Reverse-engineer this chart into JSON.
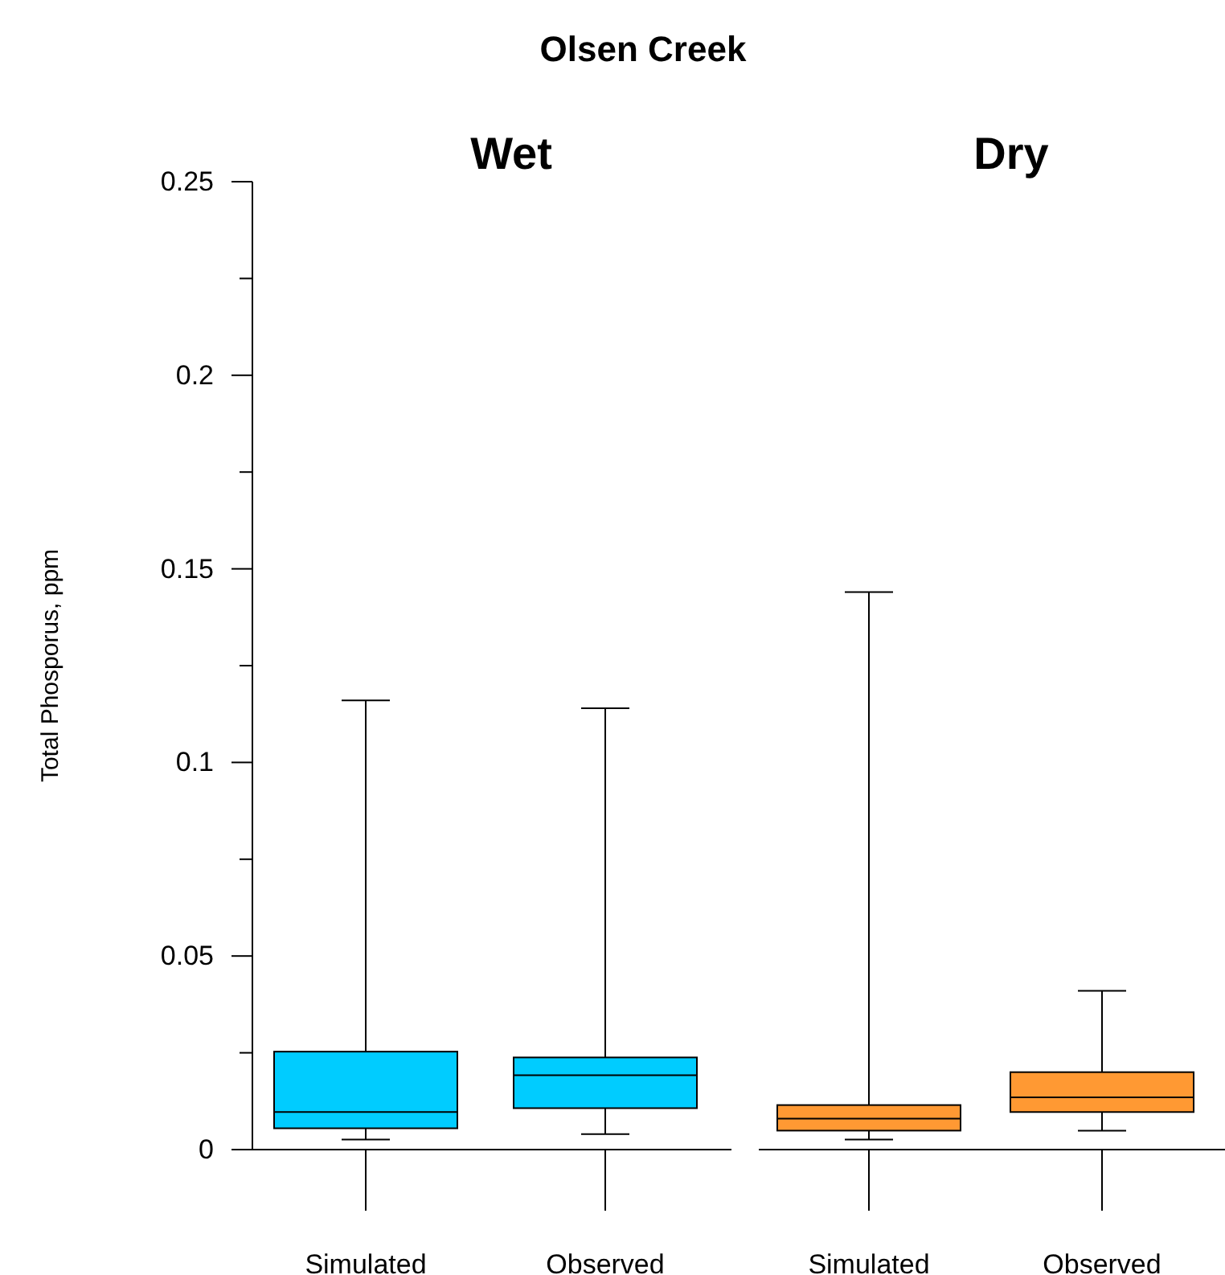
{
  "chart_data": [
    {
      "type": "box",
      "title": "Olsen Creek",
      "subtitle": "Wet",
      "ylabel": "Total Phosporus, ppm",
      "categories": [
        "Simulated",
        "Observed"
      ],
      "ylim": [
        0,
        0.25
      ],
      "yticks": [
        0,
        {
          "value": 0.025,
          "label": null
        },
        0.05,
        {
          "value": 0.075,
          "label": null
        },
        0.1,
        {
          "value": 0.125,
          "label": null
        },
        0.15,
        {
          "value": 0.175,
          "label": null
        },
        0.2,
        {
          "value": 0.225,
          "label": null
        },
        0.25
      ],
      "series": [
        {
          "color": "#00ccff",
          "boxes": [
            {
              "low": 0.0026,
              "q1": 0.0055,
              "median": 0.0097,
              "q3": 0.0253,
              "high": 0.116
            },
            {
              "low": 0.004,
              "q1": 0.0107,
              "median": 0.0192,
              "q3": 0.0238,
              "high": 0.114
            }
          ]
        }
      ]
    },
    {
      "type": "box",
      "subtitle": "Dry",
      "categories": [
        "Simulated",
        "Observed"
      ],
      "ylim": [
        0,
        0.25
      ],
      "tick_labels": "x",
      "series": [
        {
          "color": "#ff9933",
          "boxes": [
            {
              "low": 0.0026,
              "q1": 0.0049,
              "median": 0.008,
              "q3": 0.0115,
              "high": 0.144
            },
            {
              "low": 0.0049,
              "q1": 0.0097,
              "median": 0.0135,
              "q3": 0.02,
              "high": 0.041
            }
          ]
        }
      ]
    }
  ]
}
